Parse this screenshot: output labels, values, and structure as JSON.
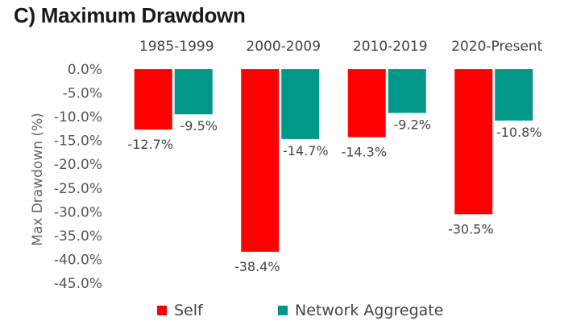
{
  "chart_data": {
    "type": "bar",
    "title": "C) Maximum Drawdown",
    "ylabel": "Max Drawdown (%)",
    "xlabel": "",
    "categories": [
      "1985-1999",
      "2000-2009",
      "2010-2019",
      "2020-Present"
    ],
    "ylim": [
      -45,
      0
    ],
    "yticks": [
      0,
      -5,
      -10,
      -15,
      -20,
      -25,
      -30,
      -35,
      -40,
      -45
    ],
    "ytick_labels": [
      "0.0%",
      "-5.0%",
      "-10.0%",
      "-15.0%",
      "-20.0%",
      "-25.0%",
      "-30.0%",
      "-35.0%",
      "-40.0%",
      "-45.0%"
    ],
    "grid": false,
    "legend_position": "bottom",
    "series": [
      {
        "name": "Self",
        "color": "#ff0000",
        "values": [
          -12.7,
          -38.4,
          -14.3,
          -30.5
        ],
        "labels": [
          "-12.7%",
          "-38.4%",
          "-14.3%",
          "-30.5%"
        ]
      },
      {
        "name": "Network Aggregate",
        "color": "#009688",
        "values": [
          -9.5,
          -14.7,
          -9.2,
          -10.8
        ],
        "labels": [
          "-9.5%",
          "-14.7%",
          "-9.2%",
          "-10.8%"
        ]
      }
    ]
  }
}
